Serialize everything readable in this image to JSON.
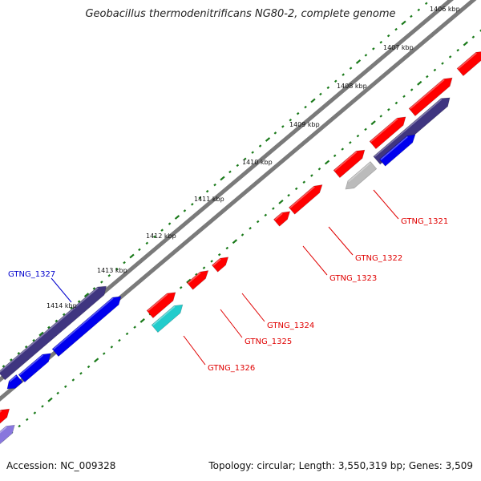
{
  "title": "Geobacillus thermodenitrificans NG80-2, complete genome",
  "accession": "Accession: NC_009328",
  "summary": "Topology: circular; Length: 3,550,319 bp; Genes: 3,509",
  "colors": {
    "backbone": "#7a7a7a",
    "tick_green": "#1a7a1a",
    "gene_red": "#ff0000",
    "gene_red_dark": "#c80000",
    "gene_blue": "#0000ee",
    "gene_navy": "#3f3580",
    "gene_lavender": "#8877dd",
    "gene_cyan": "#22cccc",
    "gene_gray": "#bbbbbb",
    "label_red": "#e00000",
    "label_blue": "#0000cc"
  },
  "kbp_labels": [
    {
      "text": "1406 kbp"
    },
    {
      "text": "1407 kbp"
    },
    {
      "text": "1408 kbp"
    },
    {
      "text": "1409 kbp"
    },
    {
      "text": "1410 kbp"
    },
    {
      "text": "1411 kbp"
    },
    {
      "text": "1412 kbp"
    },
    {
      "text": "1413 kbp"
    },
    {
      "text": "1414 kbp"
    }
  ],
  "gene_labels": [
    {
      "text": "GTNG_1321",
      "color": "label_red"
    },
    {
      "text": "GTNG_1322",
      "color": "label_red"
    },
    {
      "text": "GTNG_1323",
      "color": "label_red"
    },
    {
      "text": "GTNG_1324",
      "color": "label_red"
    },
    {
      "text": "GTNG_1325",
      "color": "label_red"
    },
    {
      "text": "GTNG_1326",
      "color": "label_red"
    },
    {
      "text": "GTNG_1327",
      "color": "label_blue"
    }
  ]
}
